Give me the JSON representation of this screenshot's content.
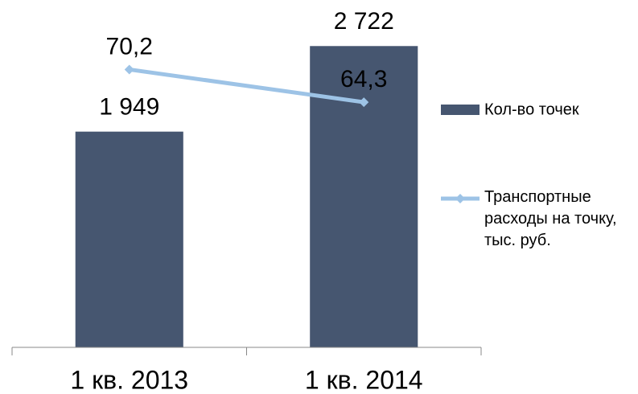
{
  "chart_data": {
    "type": "bar_line",
    "categories": [
      "1 кв. 2013",
      "1 кв. 2014"
    ],
    "series": [
      {
        "name": "Кол-во точек",
        "type": "bar",
        "color": "#465670",
        "values": [
          1949,
          2722
        ],
        "value_labels": [
          "1 949",
          "2 722"
        ]
      },
      {
        "name": "Транспортные расходы на точку, тыс. руб.",
        "type": "line",
        "axis": "y2",
        "color": "#9dc3e6",
        "values": [
          70.2,
          64.3
        ],
        "value_labels": [
          "70,2",
          "64,3"
        ]
      }
    ],
    "ylim": [
      0,
      3000
    ],
    "y2lim": [
      20,
      80
    ],
    "legend": "right"
  }
}
